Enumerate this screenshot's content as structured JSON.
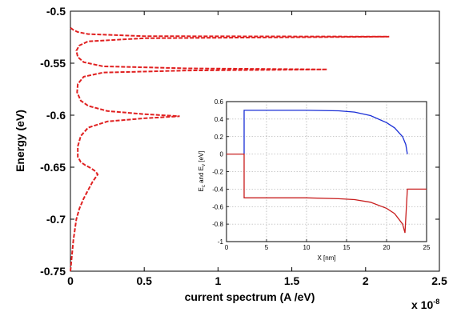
{
  "chart_data": [
    {
      "type": "line",
      "xlabel": "current spectrum (A /eV)",
      "ylabel": "Energy (eV)",
      "xlim": [
        0,
        2.5
      ],
      "ylim": [
        -0.75,
        -0.5
      ],
      "x_ticks": [
        "0",
        "0.5",
        "1",
        "1.5",
        "2",
        "2.5"
      ],
      "y_ticks": [
        "-0.5",
        "-0.55",
        "-0.6",
        "-0.65",
        "-0.7",
        "-0.75"
      ],
      "x_multiplier_base": "x 10",
      "x_multiplier_exp": "-8",
      "grid": false,
      "series": [
        {
          "style": "dashed",
          "color": "#e02020",
          "points": [
            [
              0.0,
              -0.75
            ],
            [
              0.02,
              -0.72
            ],
            [
              0.04,
              -0.7
            ],
            [
              0.06,
              -0.69
            ],
            [
              0.09,
              -0.68
            ],
            [
              0.12,
              -0.672
            ],
            [
              0.15,
              -0.664
            ],
            [
              0.17,
              -0.66
            ],
            [
              0.185,
              -0.657
            ],
            [
              0.17,
              -0.654
            ],
            [
              0.14,
              -0.651
            ],
            [
              0.1,
              -0.648
            ],
            [
              0.07,
              -0.645
            ],
            [
              0.05,
              -0.64
            ],
            [
              0.05,
              -0.63
            ],
            [
              0.07,
              -0.62
            ],
            [
              0.12,
              -0.612
            ],
            [
              0.25,
              -0.606
            ],
            [
              0.5,
              -0.603
            ],
            [
              0.74,
              -0.601
            ],
            [
              0.5,
              -0.599
            ],
            [
              0.25,
              -0.596
            ],
            [
              0.12,
              -0.591
            ],
            [
              0.07,
              -0.586
            ],
            [
              0.045,
              -0.578
            ],
            [
              0.05,
              -0.57
            ],
            [
              0.09,
              -0.563
            ],
            [
              0.22,
              -0.559
            ],
            [
              0.8,
              -0.557
            ],
            [
              1.74,
              -0.556
            ],
            [
              0.8,
              -0.555
            ],
            [
              0.22,
              -0.553
            ],
            [
              0.09,
              -0.549
            ],
            [
              0.05,
              -0.544
            ],
            [
              0.04,
              -0.538
            ],
            [
              0.06,
              -0.533
            ],
            [
              0.12,
              -0.529
            ],
            [
              0.5,
              -0.526
            ],
            [
              2.16,
              -0.5245
            ],
            [
              0.5,
              -0.524
            ],
            [
              0.12,
              -0.522
            ],
            [
              0.05,
              -0.52
            ],
            [
              0.02,
              -0.518
            ],
            [
              0.0,
              -0.516
            ]
          ]
        }
      ]
    },
    {
      "type": "line",
      "xlabel": "X [nm]",
      "ylabel_base": "E",
      "ylabel_sub1": "c",
      "ylabel_mid": " and E",
      "ylabel_sub2": "v",
      "ylabel_end": " [eV]",
      "xlim": [
        0,
        25
      ],
      "ylim": [
        -1,
        0.6
      ],
      "x_ticks": [
        "0",
        "5",
        "10",
        "15",
        "20",
        "25"
      ],
      "y_ticks": [
        "0.6",
        "0.4",
        "0.2",
        "0",
        "-0.2",
        "-0.4",
        "-0.6",
        "-0.8",
        "-1"
      ],
      "grid": true,
      "series": [
        {
          "color": "#1a2fd6",
          "points": [
            [
              2.2,
              0.0
            ],
            [
              2.2,
              0.5
            ],
            [
              5,
              0.5
            ],
            [
              10,
              0.5
            ],
            [
              14,
              0.495
            ],
            [
              16,
              0.48
            ],
            [
              18,
              0.44
            ],
            [
              20,
              0.36
            ],
            [
              21,
              0.3
            ],
            [
              22,
              0.2
            ],
            [
              22.4,
              0.11
            ],
            [
              22.6,
              0.0
            ]
          ]
        },
        {
          "color": "#c81e1e",
          "points": [
            [
              0,
              0.0
            ],
            [
              2.2,
              0.0
            ],
            [
              2.2,
              -0.5
            ],
            [
              5,
              -0.5
            ],
            [
              10,
              -0.5
            ],
            [
              14,
              -0.51
            ],
            [
              16,
              -0.52
            ],
            [
              18,
              -0.55
            ],
            [
              20,
              -0.62
            ],
            [
              21,
              -0.68
            ],
            [
              22,
              -0.8
            ],
            [
              22.3,
              -0.9
            ],
            [
              22.6,
              -0.4
            ],
            [
              25,
              -0.4
            ]
          ]
        }
      ]
    }
  ]
}
